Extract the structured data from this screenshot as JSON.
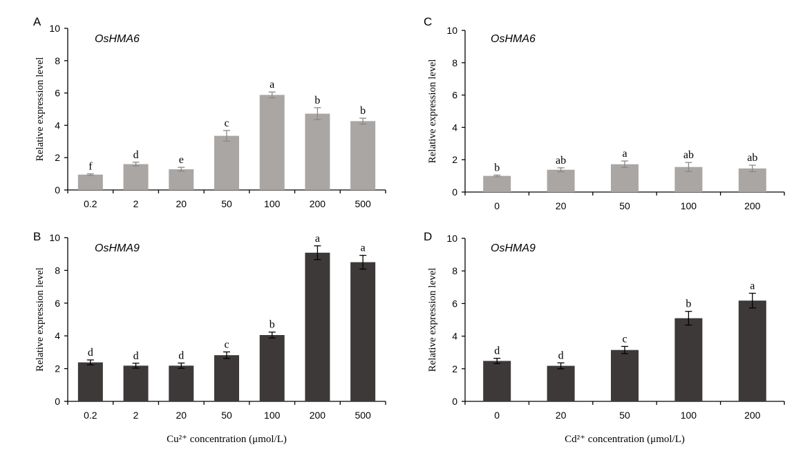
{
  "chart_data": [
    {
      "panel": "A",
      "type": "bar",
      "gene": "OsHMA6",
      "ylabel": "Relative expression level",
      "xlabel": "",
      "ylim": [
        0,
        10
      ],
      "yticks": [
        "0",
        "2",
        "4",
        "6",
        "8",
        "10"
      ],
      "categories": [
        "0.2",
        "2",
        "20",
        "50",
        "100",
        "200",
        "500"
      ],
      "values": [
        0.95,
        1.6,
        1.28,
        3.35,
        5.88,
        4.72,
        4.26
      ],
      "errors": [
        0.05,
        0.12,
        0.12,
        0.33,
        0.18,
        0.37,
        0.18
      ],
      "letters": [
        "f",
        "d",
        "e",
        "c",
        "a",
        "b",
        "b"
      ],
      "color": "#aaa6a4",
      "error_color": "#888888"
    },
    {
      "panel": "B",
      "type": "bar",
      "gene": "OsHMA9",
      "ylabel": "Relative expression level",
      "xlabel": "Cu²⁺ concentration (μmol/L)",
      "ylim": [
        0,
        10
      ],
      "yticks": [
        "0",
        "2",
        "4",
        "6",
        "8",
        "10"
      ],
      "categories": [
        "0.2",
        "2",
        "20",
        "50",
        "100",
        "200",
        "500"
      ],
      "values": [
        2.38,
        2.18,
        2.18,
        2.82,
        4.05,
        9.08,
        8.5
      ],
      "errors": [
        0.15,
        0.15,
        0.16,
        0.2,
        0.18,
        0.42,
        0.42
      ],
      "letters": [
        "d",
        "d",
        "d",
        "c",
        "b",
        "a",
        "a"
      ],
      "color": "#3c3938",
      "error_color": "#000000"
    },
    {
      "panel": "C",
      "type": "bar",
      "gene": "OsHMA6",
      "ylabel": "Relative expression level",
      "xlabel": "",
      "ylim": [
        0,
        10
      ],
      "yticks": [
        "0",
        "2",
        "4",
        "6",
        "8",
        "10"
      ],
      "categories": [
        "0",
        "20",
        "50",
        "100",
        "200"
      ],
      "values": [
        1.0,
        1.38,
        1.72,
        1.55,
        1.46
      ],
      "errors": [
        0.05,
        0.12,
        0.2,
        0.28,
        0.2
      ],
      "letters": [
        "b",
        "ab",
        "a",
        "ab",
        "ab"
      ],
      "color": "#aaa6a4",
      "error_color": "#888888"
    },
    {
      "panel": "D",
      "type": "bar",
      "gene": "OsHMA9",
      "ylabel": "Relative expression level",
      "xlabel": "Cd²⁺ concentration (μmol/L)",
      "ylim": [
        0,
        10
      ],
      "yticks": [
        "0",
        "2",
        "4",
        "6",
        "8",
        "10"
      ],
      "categories": [
        "0",
        "20",
        "50",
        "100",
        "200"
      ],
      "values": [
        2.48,
        2.18,
        3.15,
        5.1,
        6.18
      ],
      "errors": [
        0.16,
        0.18,
        0.22,
        0.42,
        0.45
      ],
      "letters": [
        "d",
        "d",
        "c",
        "b",
        "a"
      ],
      "color": "#3c3938",
      "error_color": "#000000"
    }
  ]
}
